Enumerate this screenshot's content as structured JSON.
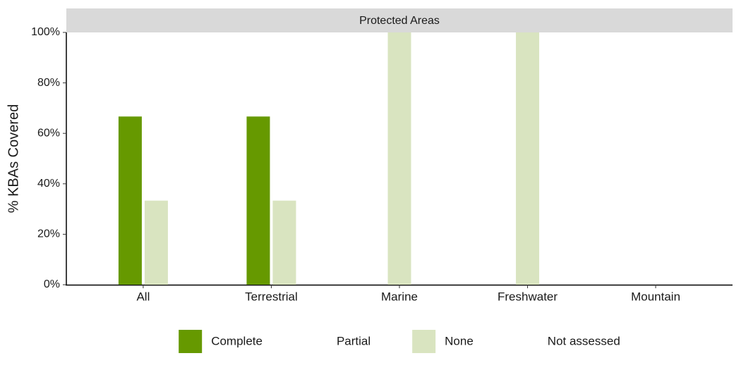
{
  "chart_data": {
    "type": "bar",
    "facet": "Protected Areas",
    "ylabel": "% KBAs Covered",
    "categories": [
      "All",
      "Terrestrial",
      "Marine",
      "Freshwater",
      "Mountain"
    ],
    "series": [
      {
        "name": "Complete",
        "color": "#669900",
        "values": [
          66.67,
          66.67,
          null,
          null,
          null
        ]
      },
      {
        "name": "Partial",
        "values": [
          null,
          null,
          null,
          null,
          null
        ]
      },
      {
        "name": "None",
        "color": "#d9e4c0",
        "values": [
          33.33,
          33.33,
          100,
          100,
          null
        ]
      },
      {
        "name": "Not assessed",
        "values": [
          null,
          null,
          null,
          null,
          null
        ]
      }
    ],
    "ylim": [
      0,
      100
    ],
    "yticks": [
      {
        "value": 0,
        "label": "0%"
      },
      {
        "value": 20,
        "label": "20%"
      },
      {
        "value": 40,
        "label": "40%"
      },
      {
        "value": 60,
        "label": "60%"
      },
      {
        "value": 80,
        "label": "80%"
      },
      {
        "value": 100,
        "label": "100%"
      }
    ],
    "grid": false,
    "legend": "bottom"
  }
}
